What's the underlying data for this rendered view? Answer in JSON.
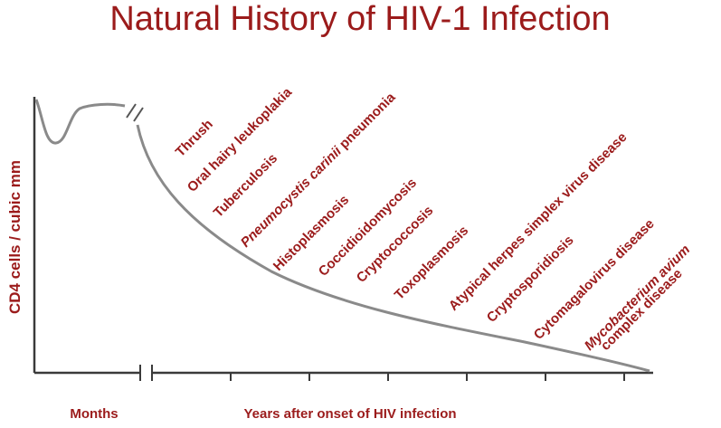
{
  "title": "Natural History of HIV-1 Infection",
  "y_axis_label": "CD4 cells / cubic mm",
  "x_axis": {
    "left_label": "Months",
    "right_label": "Years after onset of HIV infection",
    "break_marks": "//"
  },
  "colors": {
    "text": "#9b1b1b",
    "curve": "#8a8a8a",
    "axis": "#3a3a3a"
  },
  "opportunistic_infections": [
    {
      "text": "Thrush"
    },
    {
      "text": "Oral hairy leukoplakia"
    },
    {
      "text": "Tuberculosis"
    },
    {
      "text": "Pneumocystis carinii pneumonia",
      "italic_part": "Pneumocystis carinii",
      "rest": " pneumonia"
    },
    {
      "text": "Histoplasmosis"
    },
    {
      "text": "Coccidioidomycosis"
    },
    {
      "text": "Cryptococcosis"
    },
    {
      "text": "Toxoplasmosis"
    },
    {
      "text": "Atypical herpes simplex virus disease"
    },
    {
      "text": "Cryptosporidiosis"
    },
    {
      "text": "Cytomagalovirus disease"
    },
    {
      "text": "Mycobacterium avium",
      "italic": true
    },
    {
      "text": "complex disease"
    }
  ]
}
